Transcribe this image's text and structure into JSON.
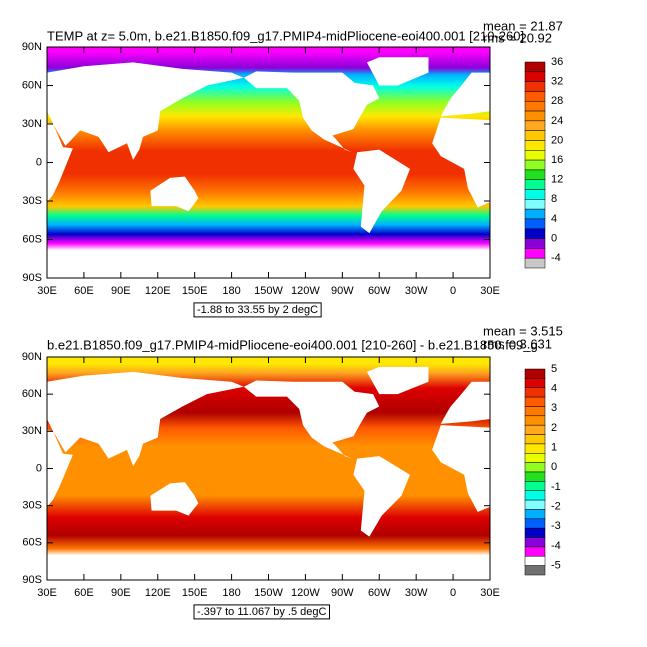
{
  "panels": [
    {
      "title": "TEMP at z=    5.0m, b.e21.B1850.f09_g17.PMIP4-midPliocene-eoi400.001 [210-260]",
      "mean": "mean = 21.87",
      "rms": "rms = 20.92",
      "footer": "-1.88 to 33.55 by 2 degC",
      "x_labels": [
        "30E",
        "60E",
        "90E",
        "120E",
        "150E",
        "180",
        "150W",
        "120W",
        "90W",
        "60W",
        "30W",
        "0",
        "30E"
      ],
      "y_labels": [
        "90N",
        "60N",
        "30N",
        "0",
        "30S",
        "60S",
        "90S"
      ],
      "colorbar": {
        "labels": [
          "36",
          "32",
          "28",
          "24",
          "20",
          "16",
          "12",
          "8",
          "4",
          "0",
          "-4"
        ],
        "colors": [
          "#b00000",
          "#dd0000",
          "#f03000",
          "#ff5a00",
          "#ff7800",
          "#ff9000",
          "#ffa820",
          "#ffc800",
          "#ffe800",
          "#e8ff00",
          "#90ff20",
          "#20e020",
          "#00ff90",
          "#00ffe8",
          "#80ffff",
          "#00b0ff",
          "#0060ff",
          "#0000c8",
          "#8a00d8",
          "#ff00ff",
          "#c8c8c8"
        ]
      }
    },
    {
      "title": "b.e21.B1850.f09_g17.PMIP4-midPliocene-eoi400.001  [210-260] - b.e21.B1850.f09_g",
      "mean": "mean = 3.515",
      "rms": "rms = 3.631",
      "footer": "-.397 to 11.067 by .5 degC",
      "x_labels": [
        "30E",
        "60E",
        "90E",
        "120E",
        "150E",
        "180",
        "150W",
        "120W",
        "90W",
        "60W",
        "30W",
        "0",
        "30E"
      ],
      "y_labels": [
        "90N",
        "60N",
        "30N",
        "0",
        "30S",
        "60S",
        "90S"
      ],
      "colorbar": {
        "labels": [
          "5",
          "4",
          "3",
          "2",
          "1",
          "0",
          "-1",
          "-2",
          "-3",
          "-4",
          "-5"
        ],
        "colors": [
          "#b00000",
          "#dd0000",
          "#f03000",
          "#ff5a00",
          "#ff7800",
          "#ff9000",
          "#ffa820",
          "#ffc800",
          "#ffe800",
          "#e8ff00",
          "#90ff20",
          "#20e020",
          "#00ff90",
          "#00ffe8",
          "#80ffff",
          "#00b0ff",
          "#0060ff",
          "#0000c8",
          "#8a00d8",
          "#ff00ff",
          "#ffffff",
          "#707070"
        ]
      }
    }
  ]
}
